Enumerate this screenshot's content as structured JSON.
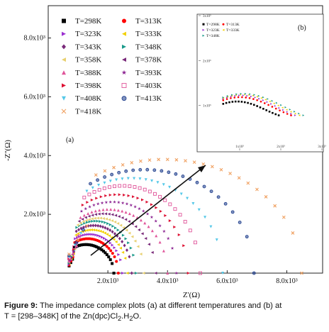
{
  "caption": {
    "lead": "Figure 9:",
    "line1": " The impedance complex plots (a) at different temperatures and (b) at",
    "line2_a": "T = [298–348K] of the Zn(dpc)Cl",
    "sub1": "2",
    "line2_b": ".H",
    "sub2": "2",
    "line2_c": "O."
  },
  "chart_data": [
    {
      "panel": "(a)",
      "type": "scatter",
      "xlabel": "Z'(Ω)",
      "ylabel": "-Z''(Ω)",
      "xlim": [
        0,
        9200
      ],
      "ylim": [
        0,
        9100
      ],
      "x_ticks": [
        2000,
        4000,
        6000,
        8000
      ],
      "x_tick_labels": [
        "2.0x10³",
        "4.0x10³",
        "6.0x10³",
        "8.0x10³"
      ],
      "y_ticks": [
        2000,
        4000,
        6000,
        8000
      ],
      "y_tick_labels": [
        "2.0x10³",
        "4.0x10³",
        "6.0x10³",
        "8.0x10³"
      ],
      "legend_position": "top-left",
      "series": [
        {
          "name": "T=298K",
          "marker": "square",
          "color": "#000000",
          "x_start": 700,
          "x_end": 2200,
          "height": 900
        },
        {
          "name": "T=313K",
          "marker": "circle",
          "color": "#ff0000",
          "x_start": 700,
          "x_end": 2350,
          "height": 1100
        },
        {
          "name": "T=323K",
          "marker": "triangle-right",
          "color": "#9b30d0",
          "x_start": 700,
          "x_end": 2500,
          "height": 1250
        },
        {
          "name": "T=333K",
          "marker": "triangle-left",
          "color": "#f2d000",
          "x_start": 700,
          "x_end": 2650,
          "height": 1400
        },
        {
          "name": "T=343K",
          "marker": "diamond",
          "color": "#7a2a7a",
          "x_start": 700,
          "x_end": 2800,
          "height": 1550
        },
        {
          "name": "T=348K",
          "marker": "triangle-right",
          "color": "#1a9a8a",
          "x_start": 700,
          "x_end": 2950,
          "height": 1700
        },
        {
          "name": "T=358K",
          "marker": "triangle-left",
          "color": "#e8d070",
          "x_start": 700,
          "x_end": 3200,
          "height": 1800
        },
        {
          "name": "T=378K",
          "marker": "triangle-left",
          "color": "#7a2a7a",
          "x_start": 700,
          "x_end": 3600,
          "height": 1950
        },
        {
          "name": "T=388K",
          "marker": "triangle-up",
          "color": "#e0559a",
          "x_start": 700,
          "x_end": 4000,
          "height": 2100
        },
        {
          "name": "T=393K",
          "marker": "star",
          "color": "#8a2090",
          "x_start": 700,
          "x_end": 4300,
          "height": 2350
        },
        {
          "name": "T=398K",
          "marker": "triangle-right",
          "color": "#dd1133",
          "x_start": 700,
          "x_end": 4700,
          "height": 2600
        },
        {
          "name": "T=403K",
          "marker": "square-open",
          "color": "#e0559a",
          "x_start": 700,
          "x_end": 5100,
          "height": 2900
        },
        {
          "name": "T=408K",
          "marker": "triangle-down",
          "color": "#55c8e8",
          "x_start": 700,
          "x_end": 5850,
          "height": 3150
        },
        {
          "name": "T=413K",
          "marker": "half-circle",
          "color": "#1a3a8a",
          "x_start": 700,
          "x_end": 6900,
          "height": 3450
        },
        {
          "name": "T=418K",
          "marker": "x",
          "color": "#f0a060",
          "x_start": 700,
          "x_end": 8500,
          "height": 3800
        }
      ]
    },
    {
      "panel": "(b)",
      "type": "scatter",
      "xlim": [
        0,
        3000
      ],
      "ylim": [
        0,
        3000
      ],
      "x_tick_labels": [
        "1x10³",
        "2x10³",
        "3x10³"
      ],
      "y_tick_labels": [
        "1x10³",
        "2x10³",
        "3x10³"
      ],
      "series_names": [
        "T=298K",
        "T=313K",
        "T=323K",
        "T=333K",
        "T=348K"
      ]
    }
  ]
}
